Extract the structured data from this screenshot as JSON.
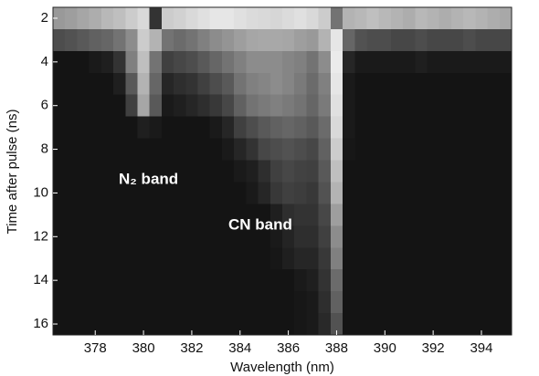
{
  "chart_data": {
    "type": "heatmap",
    "xlabel": "Wavelength (nm)",
    "ylabel": "Time after pulse (ns)",
    "annotations": [
      "N₂ band",
      "CN band"
    ],
    "colormap": "gray",
    "zlim": [
      0,
      100
    ],
    "xlim": [
      376.25,
      395.25
    ],
    "ylim": [
      16.5,
      1.5
    ],
    "xticks": [
      378,
      380,
      382,
      384,
      386,
      388,
      390,
      392,
      394
    ],
    "yticks": [
      2,
      4,
      6,
      8,
      10,
      12,
      14,
      16
    ],
    "x": [
      376.5,
      377,
      377.5,
      378,
      378.5,
      379,
      379.5,
      380,
      380.5,
      381,
      381.5,
      382,
      382.5,
      383,
      383.5,
      384,
      384.5,
      385,
      385.5,
      386,
      386.5,
      387,
      387.5,
      388,
      388.5,
      389,
      389.5,
      390,
      390.5,
      391,
      391.5,
      392,
      392.5,
      393,
      393.5,
      394,
      394.5,
      395
    ],
    "y": [
      2,
      3,
      4,
      5,
      6,
      7,
      8,
      9,
      10,
      11,
      12,
      13,
      14,
      15,
      16
    ],
    "z": [
      [
        60,
        62,
        65,
        68,
        72,
        75,
        80,
        85,
        20,
        80,
        82,
        85,
        88,
        90,
        90,
        88,
        86,
        85,
        84,
        86,
        88,
        85,
        80,
        45,
        70,
        72,
        75,
        72,
        70,
        68,
        72,
        70,
        68,
        70,
        72,
        70,
        68,
        66
      ],
      [
        30,
        32,
        35,
        38,
        40,
        45,
        55,
        80,
        70,
        45,
        42,
        45,
        50,
        55,
        58,
        62,
        65,
        66,
        66,
        65,
        62,
        60,
        70,
        90,
        40,
        32,
        30,
        30,
        28,
        28,
        30,
        28,
        28,
        28,
        30,
        28,
        28,
        28
      ],
      [
        8,
        8,
        8,
        10,
        12,
        20,
        50,
        75,
        45,
        25,
        28,
        30,
        35,
        40,
        45,
        50,
        55,
        55,
        55,
        52,
        50,
        45,
        55,
        92,
        15,
        10,
        10,
        10,
        10,
        10,
        12,
        10,
        10,
        10,
        10,
        10,
        10,
        10
      ],
      [
        8,
        8,
        8,
        8,
        8,
        12,
        35,
        70,
        40,
        15,
        18,
        20,
        25,
        30,
        35,
        45,
        50,
        52,
        55,
        52,
        48,
        42,
        50,
        90,
        10,
        8,
        8,
        8,
        8,
        8,
        8,
        8,
        8,
        8,
        8,
        8,
        8,
        8
      ],
      [
        8,
        8,
        8,
        8,
        8,
        8,
        25,
        65,
        35,
        10,
        12,
        15,
        18,
        22,
        28,
        38,
        45,
        48,
        50,
        48,
        45,
        40,
        48,
        88,
        10,
        8,
        8,
        8,
        8,
        8,
        8,
        8,
        8,
        8,
        8,
        8,
        8,
        8
      ],
      [
        8,
        8,
        8,
        8,
        8,
        8,
        8,
        12,
        10,
        8,
        8,
        8,
        8,
        10,
        15,
        25,
        30,
        35,
        38,
        40,
        38,
        35,
        42,
        85,
        10,
        8,
        8,
        8,
        8,
        8,
        8,
        8,
        8,
        8,
        8,
        8,
        8,
        8
      ],
      [
        8,
        8,
        8,
        8,
        8,
        8,
        8,
        8,
        8,
        8,
        8,
        8,
        8,
        8,
        10,
        15,
        20,
        28,
        30,
        32,
        30,
        28,
        38,
        80,
        9,
        8,
        8,
        8,
        8,
        8,
        8,
        8,
        8,
        8,
        8,
        8,
        8,
        8
      ],
      [
        8,
        8,
        8,
        8,
        8,
        8,
        8,
        8,
        8,
        8,
        8,
        8,
        8,
        8,
        8,
        10,
        12,
        18,
        25,
        28,
        26,
        25,
        35,
        75,
        8,
        8,
        8,
        8,
        8,
        8,
        8,
        8,
        8,
        8,
        8,
        8,
        8,
        8
      ],
      [
        8,
        8,
        8,
        8,
        8,
        8,
        8,
        8,
        8,
        8,
        8,
        8,
        8,
        8,
        8,
        8,
        10,
        15,
        22,
        25,
        24,
        22,
        32,
        70,
        8,
        8,
        8,
        8,
        8,
        8,
        8,
        8,
        8,
        8,
        8,
        8,
        8,
        8
      ],
      [
        8,
        8,
        8,
        8,
        8,
        8,
        8,
        8,
        8,
        8,
        8,
        8,
        8,
        8,
        8,
        8,
        8,
        8,
        12,
        18,
        20,
        20,
        28,
        62,
        8,
        8,
        8,
        8,
        8,
        8,
        8,
        8,
        8,
        8,
        8,
        8,
        8,
        8
      ],
      [
        8,
        8,
        8,
        8,
        8,
        8,
        8,
        8,
        8,
        8,
        8,
        8,
        8,
        8,
        8,
        8,
        8,
        8,
        10,
        14,
        18,
        18,
        25,
        55,
        8,
        8,
        8,
        8,
        8,
        8,
        8,
        8,
        8,
        8,
        8,
        8,
        8,
        8
      ],
      [
        8,
        8,
        8,
        8,
        8,
        8,
        8,
        8,
        8,
        8,
        8,
        8,
        8,
        8,
        8,
        8,
        8,
        8,
        9,
        12,
        15,
        15,
        22,
        50,
        8,
        8,
        8,
        8,
        8,
        8,
        8,
        8,
        8,
        8,
        8,
        8,
        8,
        8
      ],
      [
        8,
        8,
        8,
        8,
        8,
        8,
        8,
        8,
        8,
        8,
        8,
        8,
        8,
        8,
        8,
        8,
        8,
        8,
        8,
        8,
        10,
        12,
        20,
        42,
        8,
        8,
        8,
        8,
        8,
        8,
        8,
        8,
        8,
        8,
        8,
        8,
        8,
        8
      ],
      [
        8,
        8,
        8,
        8,
        8,
        8,
        8,
        8,
        8,
        8,
        8,
        8,
        8,
        8,
        8,
        8,
        8,
        8,
        8,
        8,
        9,
        10,
        18,
        38,
        8,
        8,
        8,
        8,
        8,
        8,
        8,
        8,
        8,
        8,
        8,
        8,
        8,
        8
      ],
      [
        8,
        8,
        8,
        8,
        8,
        8,
        8,
        8,
        8,
        8,
        8,
        8,
        8,
        8,
        8,
        8,
        8,
        8,
        8,
        8,
        9,
        10,
        16,
        32,
        8,
        8,
        8,
        8,
        8,
        8,
        8,
        8,
        8,
        8,
        8,
        8,
        8,
        8
      ]
    ]
  }
}
